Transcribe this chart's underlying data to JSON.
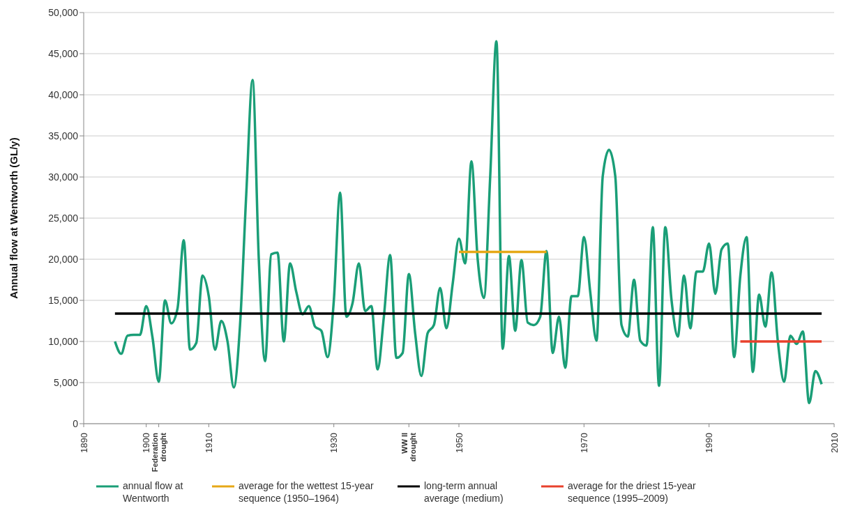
{
  "chart_data": {
    "type": "line",
    "ylabel": "Annual flow at Wentworth (GL/y)",
    "x": [
      1895,
      1896,
      1897,
      1898,
      1899,
      1900,
      1901,
      1902,
      1903,
      1904,
      1905,
      1906,
      1907,
      1908,
      1909,
      1910,
      1911,
      1912,
      1913,
      1914,
      1915,
      1916,
      1917,
      1918,
      1919,
      1920,
      1921,
      1922,
      1923,
      1924,
      1925,
      1926,
      1927,
      1928,
      1929,
      1930,
      1931,
      1932,
      1933,
      1934,
      1935,
      1936,
      1937,
      1938,
      1939,
      1940,
      1941,
      1942,
      1943,
      1944,
      1945,
      1946,
      1947,
      1948,
      1949,
      1950,
      1951,
      1952,
      1953,
      1954,
      1955,
      1956,
      1957,
      1958,
      1959,
      1960,
      1961,
      1962,
      1963,
      1964,
      1965,
      1966,
      1967,
      1968,
      1969,
      1970,
      1971,
      1972,
      1973,
      1974,
      1975,
      1976,
      1977,
      1978,
      1979,
      1980,
      1981,
      1982,
      1983,
      1984,
      1985,
      1986,
      1987,
      1988,
      1989,
      1990,
      1991,
      1992,
      1993,
      1994,
      1995,
      1996,
      1997,
      1998,
      1999,
      2000,
      2001,
      2002,
      2003,
      2004,
      2005,
      2006,
      2007,
      2008
    ],
    "series": [
      {
        "name": "annual flow at Wentworth",
        "color": "#1a9e77",
        "values": [
          10000,
          8500,
          10700,
          10800,
          10800,
          14300,
          10500,
          5100,
          15000,
          12200,
          14000,
          22300,
          9000,
          9800,
          18000,
          15500,
          9000,
          12500,
          10000,
          4400,
          12000,
          28000,
          41800,
          20000,
          7600,
          20600,
          20800,
          10000,
          19500,
          16000,
          13300,
          14300,
          11800,
          11300,
          8100,
          15000,
          28100,
          13000,
          14700,
          19500,
          13700,
          14300,
          6600,
          13000,
          20500,
          8000,
          8600,
          18200,
          11000,
          5800,
          11000,
          12000,
          16500,
          11600,
          17000,
          22500,
          19500,
          31900,
          20000,
          15300,
          30000,
          46500,
          9100,
          20400,
          11300,
          19900,
          12300,
          12000,
          13000,
          21000,
          8600,
          13000,
          6800,
          15500,
          15500,
          22700,
          16000,
          10100,
          30100,
          33300,
          30100,
          12000,
          10600,
          17500,
          10100,
          9500,
          23900,
          4600,
          23900,
          15000,
          10600,
          18000,
          11600,
          18500,
          18500,
          21900,
          15800,
          21200,
          21900,
          8100,
          18000,
          22700,
          6300,
          15700,
          11800,
          18400,
          10000,
          5100,
          10700,
          9700,
          11200,
          2500,
          6400,
          4800
        ]
      },
      {
        "name": "average for the wettest 15-year sequence (1950–1964)",
        "color": "#e6a817",
        "x": [
          1950,
          1964
        ],
        "values": [
          20900,
          20900
        ]
      },
      {
        "name": "long-term annual average (medium)",
        "color": "#000000",
        "x": [
          1895,
          2008
        ],
        "values": [
          13400,
          13400
        ]
      },
      {
        "name": "average for the driest 15-year sequence (1995–2009)",
        "color": "#e8412c",
        "x": [
          1995,
          2008
        ],
        "values": [
          10000,
          10000
        ]
      }
    ],
    "xlim": [
      1890,
      2010
    ],
    "xticks": [
      1890,
      1900,
      {
        "value": 1902,
        "label": "Federation drought"
      },
      1910,
      1930,
      {
        "value": 1942,
        "label": "WW II drought"
      },
      1950,
      1970,
      1990,
      2010
    ],
    "ylim": [
      0,
      50000
    ],
    "yticks": [
      0,
      {
        "value": 5000,
        "label": "5,000"
      },
      {
        "value": 10000,
        "label": "10,000"
      },
      {
        "value": 15000,
        "label": "15,000"
      },
      {
        "value": 20000,
        "label": "20,000"
      },
      {
        "value": 25000,
        "label": "25,000"
      },
      {
        "value": 30000,
        "label": "30,000"
      },
      {
        "value": 35000,
        "label": "35,000"
      },
      {
        "value": 40000,
        "label": "40,000"
      },
      {
        "value": 45000,
        "label": "45,000"
      },
      {
        "value": 50000,
        "label": "50,000"
      }
    ],
    "grid": "y",
    "legend": "bottom",
    "marker": "none",
    "line_style": "solid"
  }
}
